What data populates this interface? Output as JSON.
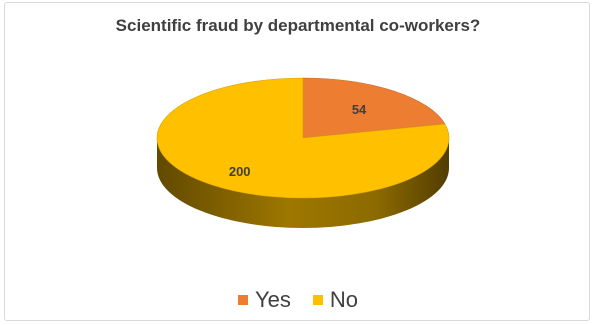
{
  "chart_data": {
    "type": "pie",
    "title": "Scientific fraud by departmental co-workers?",
    "categories": [
      "Yes",
      "No"
    ],
    "values": [
      54,
      200
    ],
    "colors": [
      "#ED7D31",
      "#FFC000"
    ],
    "data_labels": [
      "54",
      "200"
    ],
    "style": "3d",
    "legend_position": "bottom"
  }
}
